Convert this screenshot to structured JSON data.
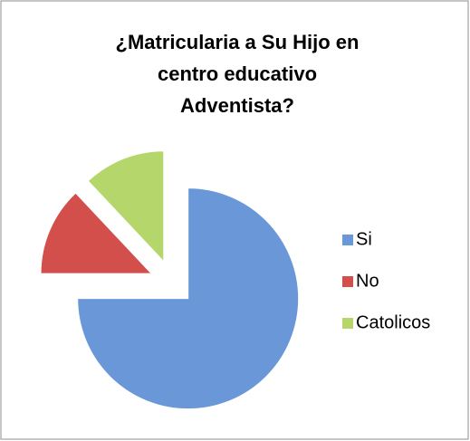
{
  "chart_data": {
    "type": "pie",
    "title": [
      "¿Matricularia a Su Hijo en",
      "centro educativo",
      "Adventista?"
    ],
    "categories": [
      "Si",
      "No",
      "Catolicos"
    ],
    "values": [
      75,
      13,
      12
    ],
    "colors": [
      "#6a97d8",
      "#d24f4c",
      "#b5d66a"
    ],
    "legend": "right"
  }
}
